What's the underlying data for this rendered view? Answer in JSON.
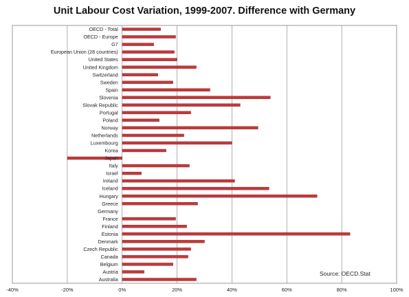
{
  "chart_data": {
    "type": "bar",
    "orientation": "horizontal",
    "title": "Unit Labour Cost Variation, 1999-2007. Difference with Germany",
    "source": "Source: OECD.Stat",
    "xlim": [
      -40,
      100
    ],
    "xticks": [
      -40,
      -20,
      0,
      20,
      40,
      60,
      80,
      100
    ],
    "xtick_labels": [
      "-40%",
      "-20%",
      "0%",
      "20%",
      "40%",
      "60%",
      "80%",
      "100%"
    ],
    "grid": "vertical",
    "bar_color": "#c0393b",
    "categories": [
      "OECD - Total",
      "OECD - Europe",
      "G7",
      "European Union (28 countries)",
      "United States",
      "United Kingdom",
      "Switzerland",
      "Sweden",
      "Spain",
      "Slovenia",
      "Slovak Republic",
      "Portugal",
      "Poland",
      "Norway",
      "Netherlands",
      "Luxembourg",
      "Korea",
      "Japan",
      "Italy",
      "Israel",
      "Ireland",
      "Iceland",
      "Hungary",
      "Greece",
      "Germany",
      "France",
      "Finland",
      "Estonia",
      "Denmark",
      "Czech Republic",
      "Canada",
      "Belgium",
      "Austria",
      "Australia"
    ],
    "values": [
      14,
      19.5,
      11.5,
      19,
      20,
      27,
      13,
      18.5,
      32,
      54,
      43,
      25,
      13.5,
      49.5,
      22.5,
      40,
      16,
      -20,
      24.5,
      7,
      41,
      53.5,
      71,
      27.5,
      0,
      19.5,
      23.5,
      83,
      30,
      25,
      24,
      18.5,
      8,
      27
    ]
  }
}
